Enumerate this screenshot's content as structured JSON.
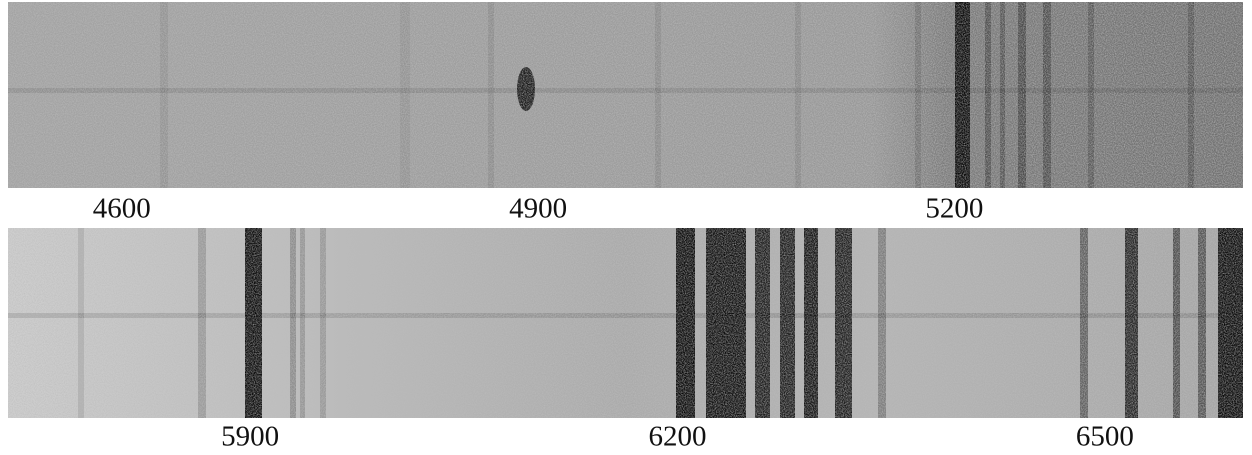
{
  "chart_data": [
    {
      "type": "spectrum",
      "xlim": [
        4518,
        5408
      ],
      "xticks": [
        4600,
        4900,
        5200
      ]
    },
    {
      "type": "spectrum",
      "xlim": [
        5730,
        6597
      ],
      "xticks": [
        5900,
        6200,
        6500
      ]
    }
  ]
}
